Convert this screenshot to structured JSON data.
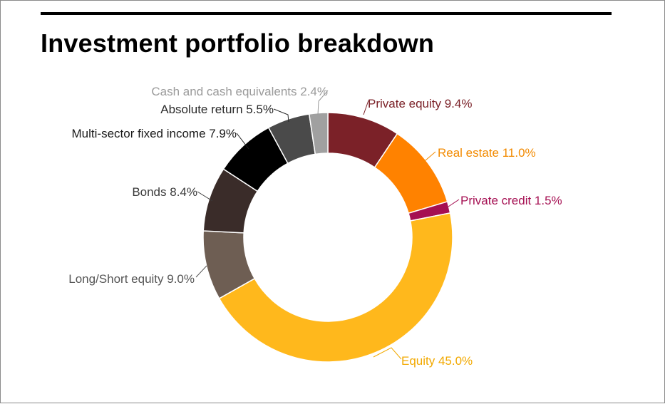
{
  "title": "Investment portfolio breakdown",
  "chart_data": {
    "type": "pie",
    "variant": "donut",
    "title": "Investment portfolio breakdown",
    "slices": [
      {
        "name": "Private equity",
        "value": 9.4,
        "label": "Private equity 9.4%",
        "color": "#7B2128"
      },
      {
        "name": "Real estate",
        "value": 11.0,
        "label": "Real estate 11.0%",
        "color": "#FF8200"
      },
      {
        "name": "Private credit",
        "value": 1.5,
        "label": "Private credit 1.5%",
        "color": "#A50F52"
      },
      {
        "name": "Equity",
        "value": 45.0,
        "label": "Equity 45.0%",
        "color": "#FFB81C"
      },
      {
        "name": "Long/Short equity",
        "value": 9.0,
        "label": "Long/Short equity 9.0%",
        "color": "#6E5E53"
      },
      {
        "name": "Bonds",
        "value": 8.4,
        "label": "Bonds 8.4%",
        "color": "#3A2C29"
      },
      {
        "name": "Multi-sector fixed income",
        "value": 7.9,
        "label": "Multi-sector fixed income 7.9%",
        "color": "#000000"
      },
      {
        "name": "Absolute return",
        "value": 5.5,
        "label": "Absolute return 5.5%",
        "color": "#4A4A4A"
      },
      {
        "name": "Cash and cash equivalents",
        "value": 2.4,
        "label": "Cash and cash equivalents 2.4%",
        "color": "#A0A0A0"
      }
    ],
    "label_colors": {
      "Private equity": "#7B2128",
      "Real estate": "#F28A00",
      "Private credit": "#A50F52",
      "Equity": "#F2A900",
      "Long/Short equity": "#555555",
      "Bonds": "#3A3A3A",
      "Multi-sector fixed income": "#1A1A1A",
      "Absolute return": "#2A2A2A",
      "Cash and cash equivalents": "#9A9A9A"
    },
    "start_angle": "12 o'clock",
    "direction": "clockwise",
    "legend": "none"
  }
}
